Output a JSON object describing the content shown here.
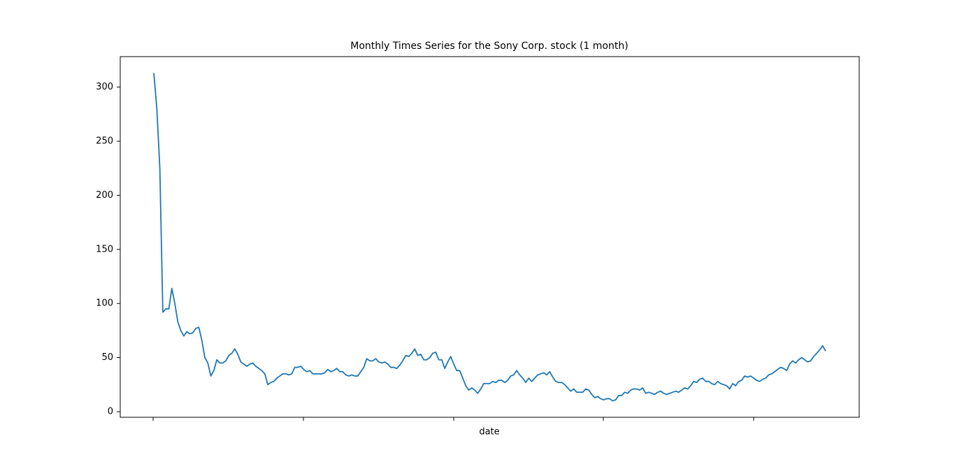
{
  "chart_data": {
    "type": "line",
    "title": "Monthly Times Series for the Sony Corp. stock (1 month)",
    "xlabel": "date",
    "color": "#1f77b4",
    "values": [
      313,
      280,
      225,
      92,
      95,
      95,
      114,
      100,
      83,
      75,
      70,
      74,
      72,
      73,
      77,
      78,
      66,
      50,
      45,
      33,
      38,
      48,
      45,
      45,
      47,
      52,
      54,
      58,
      53,
      46,
      44,
      42,
      44,
      45,
      42,
      40,
      38,
      35,
      25,
      27,
      28,
      31,
      33,
      35,
      35,
      34,
      35,
      41,
      41,
      42,
      39,
      37,
      38,
      35,
      35,
      35,
      35,
      36,
      39,
      37,
      38,
      40,
      37,
      37,
      34,
      33,
      34,
      33,
      33,
      37,
      41,
      49,
      47,
      47,
      49,
      46,
      45,
      46,
      44,
      41,
      41,
      40,
      43,
      47,
      52,
      51,
      54,
      58,
      52,
      53,
      48,
      48,
      50,
      54,
      55,
      48,
      48,
      40,
      46,
      51,
      44,
      38,
      38,
      31,
      24,
      20,
      22,
      20,
      17,
      21,
      26,
      26,
      26,
      28,
      27,
      29,
      29,
      27,
      29,
      33,
      34,
      38,
      34,
      31,
      27,
      31,
      28,
      31,
      34,
      35,
      36,
      34,
      37,
      32,
      28,
      27,
      27,
      25,
      22,
      19,
      21,
      18,
      18,
      18,
      21,
      20,
      16,
      13,
      14,
      12,
      11,
      12,
      12,
      10,
      11,
      15,
      15,
      18,
      17,
      20,
      21,
      21,
      20,
      22,
      17,
      18,
      17,
      16,
      18,
      19,
      17,
      16,
      17,
      18,
      19,
      18,
      20,
      22,
      21,
      24,
      28,
      27,
      30,
      31,
      28,
      28,
      26,
      25,
      28,
      26,
      25,
      24,
      21,
      26,
      24,
      28,
      29,
      33,
      32,
      33,
      31,
      29,
      28,
      30,
      31,
      34,
      35,
      37,
      39,
      41,
      40,
      38,
      44,
      47,
      45,
      48,
      50,
      48,
      46,
      47,
      51,
      54,
      57,
      61,
      56
    ],
    "ylim": [
      -5.15,
      328.15
    ],
    "yticks": [
      0,
      50,
      100,
      150,
      200,
      250,
      300
    ]
  }
}
